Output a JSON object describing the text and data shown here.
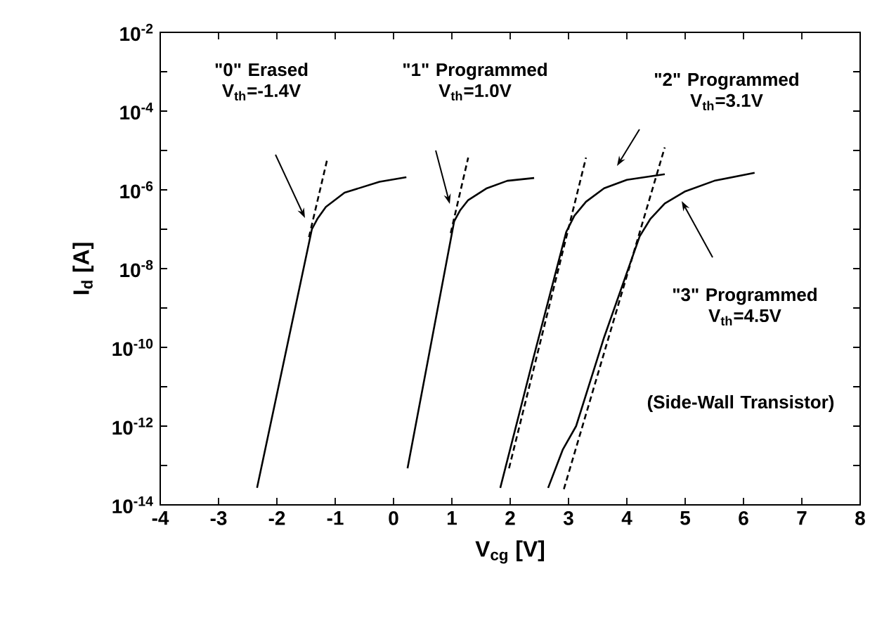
{
  "chart_data": {
    "type": "line",
    "xlabel": "V$_{cg}$ [V]",
    "ylabel": "I$_{d}$ [A]",
    "log": "y",
    "xlim": [
      -4,
      8
    ],
    "xticks": [
      -4,
      -3,
      -2,
      -1,
      0,
      1,
      2,
      3,
      4,
      5,
      6,
      7,
      8
    ],
    "ylim": [
      1e-14,
      0.01
    ],
    "yticks": [
      {
        "value": 1e-14,
        "label": "10$^{-14}$"
      },
      {
        "value": 1e-13,
        "label": null
      },
      {
        "value": 1e-12,
        "label": "10$^{-12}$"
      },
      {
        "value": 1e-11,
        "label": null
      },
      {
        "value": 1e-10,
        "label": "10$^{-10}$"
      },
      {
        "value": 1e-09,
        "label": null
      },
      {
        "value": 1e-08,
        "label": "10$^{-8}$"
      },
      {
        "value": 1e-07,
        "label": null
      },
      {
        "value": 1e-06,
        "label": "10$^{-6}$"
      },
      {
        "value": 1e-05,
        "label": null
      },
      {
        "value": 0.0001,
        "label": "10$^{-4}$"
      },
      {
        "value": 0.001,
        "label": null
      },
      {
        "value": 0.01,
        "label": "10$^{-2}$"
      }
    ],
    "grid": false,
    "marker": "none",
    "series": [
      {
        "color": "#000000",
        "line_style": "solid",
        "x": [
          -2.34,
          -1.4,
          -1.3,
          -1.16,
          -0.84,
          -0.24,
          0.22
        ],
        "values": [
          2.7e-14,
          1e-07,
          1.9e-07,
          3.7e-07,
          8.5e-07,
          1.6e-06,
          2.1e-06
        ]
      },
      {
        "color": "#000000",
        "line_style": "solid",
        "x": [
          0.24,
          1.04,
          1.14,
          1.28,
          1.6,
          1.95,
          2.41
        ],
        "values": [
          8.5e-14,
          1.6e-07,
          3e-07,
          5.5e-07,
          1.1e-06,
          1.7e-06,
          2e-06
        ]
      },
      {
        "color": "#000000",
        "line_style": "solid",
        "x": [
          1.83,
          2.41,
          2.96,
          3.1,
          3.3,
          3.61,
          4.0,
          4.65
        ],
        "values": [
          2.7e-14,
          6.3e-11,
          8.5e-08,
          2.2e-07,
          5e-07,
          1.1e-06,
          1.8e-06,
          2.5e-06
        ]
      },
      {
        "color": "#000000",
        "line_style": "solid",
        "x": [
          2.65,
          2.9,
          3.13,
          3.61,
          4.22,
          4.4,
          4.65,
          4.99,
          5.5,
          6.19
        ],
        "values": [
          2.7e-14,
          2.5e-13,
          1e-12,
          1.8e-10,
          6.6e-08,
          1.8e-07,
          4.5e-07,
          9e-07,
          1.7e-06,
          2.7e-06
        ]
      },
      {
        "color": "#000000",
        "line_style": "dashed",
        "x": [
          -1.45,
          -1.13
        ],
        "values": [
          6.3e-08,
          6.6e-06
        ]
      },
      {
        "color": "#000000",
        "line_style": "dashed",
        "x": [
          0.98,
          1.28
        ],
        "values": [
          8e-08,
          6.6e-06
        ]
      },
      {
        "color": "#000000",
        "line_style": "dashed",
        "x": [
          1.98,
          3.3
        ],
        "values": [
          8.5e-14,
          6.6e-06
        ]
      },
      {
        "color": "#000000",
        "line_style": "dashed",
        "x": [
          2.92,
          4.65
        ],
        "values": [
          2.5e-14,
          1.2e-05
        ]
      }
    ],
    "annotations": [
      "\"0\" Erased V$_{th}$=-1.4V",
      "\"1\" Programmed V$_{th}$=1.0V",
      "\"2\" Programmed V$_{th}$=3.1V",
      "\"3\" Programmed V$_{th}$=4.5V",
      "(Side-Wall Transistor)"
    ]
  }
}
